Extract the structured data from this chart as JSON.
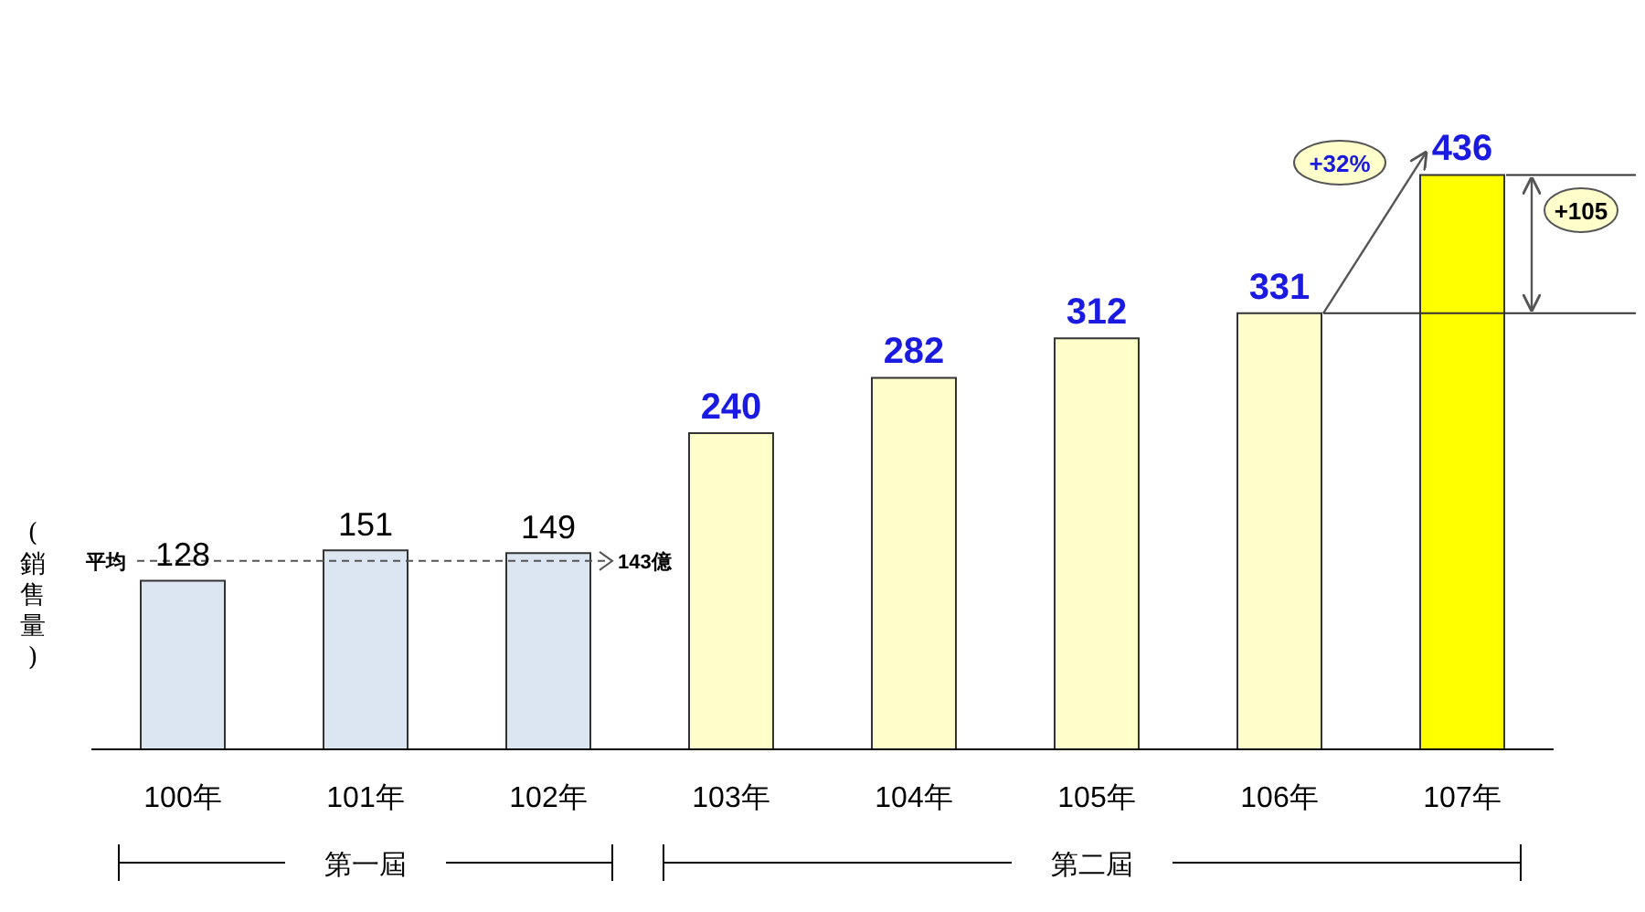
{
  "chart_data": {
    "type": "bar",
    "ylabel": "(銷售量)",
    "categories": [
      "100年",
      "101年",
      "102年",
      "103年",
      "104年",
      "105年",
      "106年",
      "107年"
    ],
    "values": [
      128,
      151,
      149,
      240,
      282,
      312,
      331,
      436
    ],
    "colors": [
      "#dce6f2",
      "#dce6f2",
      "#dce6f2",
      "#ffffcc",
      "#ffffcc",
      "#ffffcc",
      "#ffffcc",
      "#ffff00"
    ],
    "data_labels": true,
    "tick_labels": "x",
    "ref_lines": [
      {
        "axis": "y",
        "value": 143,
        "label": "143億",
        "line_style": "dashed",
        "color": "#555555"
      }
    ],
    "annotations": [
      "平均",
      "+32%",
      "+105",
      "第一屆",
      "第二屆"
    ]
  }
}
